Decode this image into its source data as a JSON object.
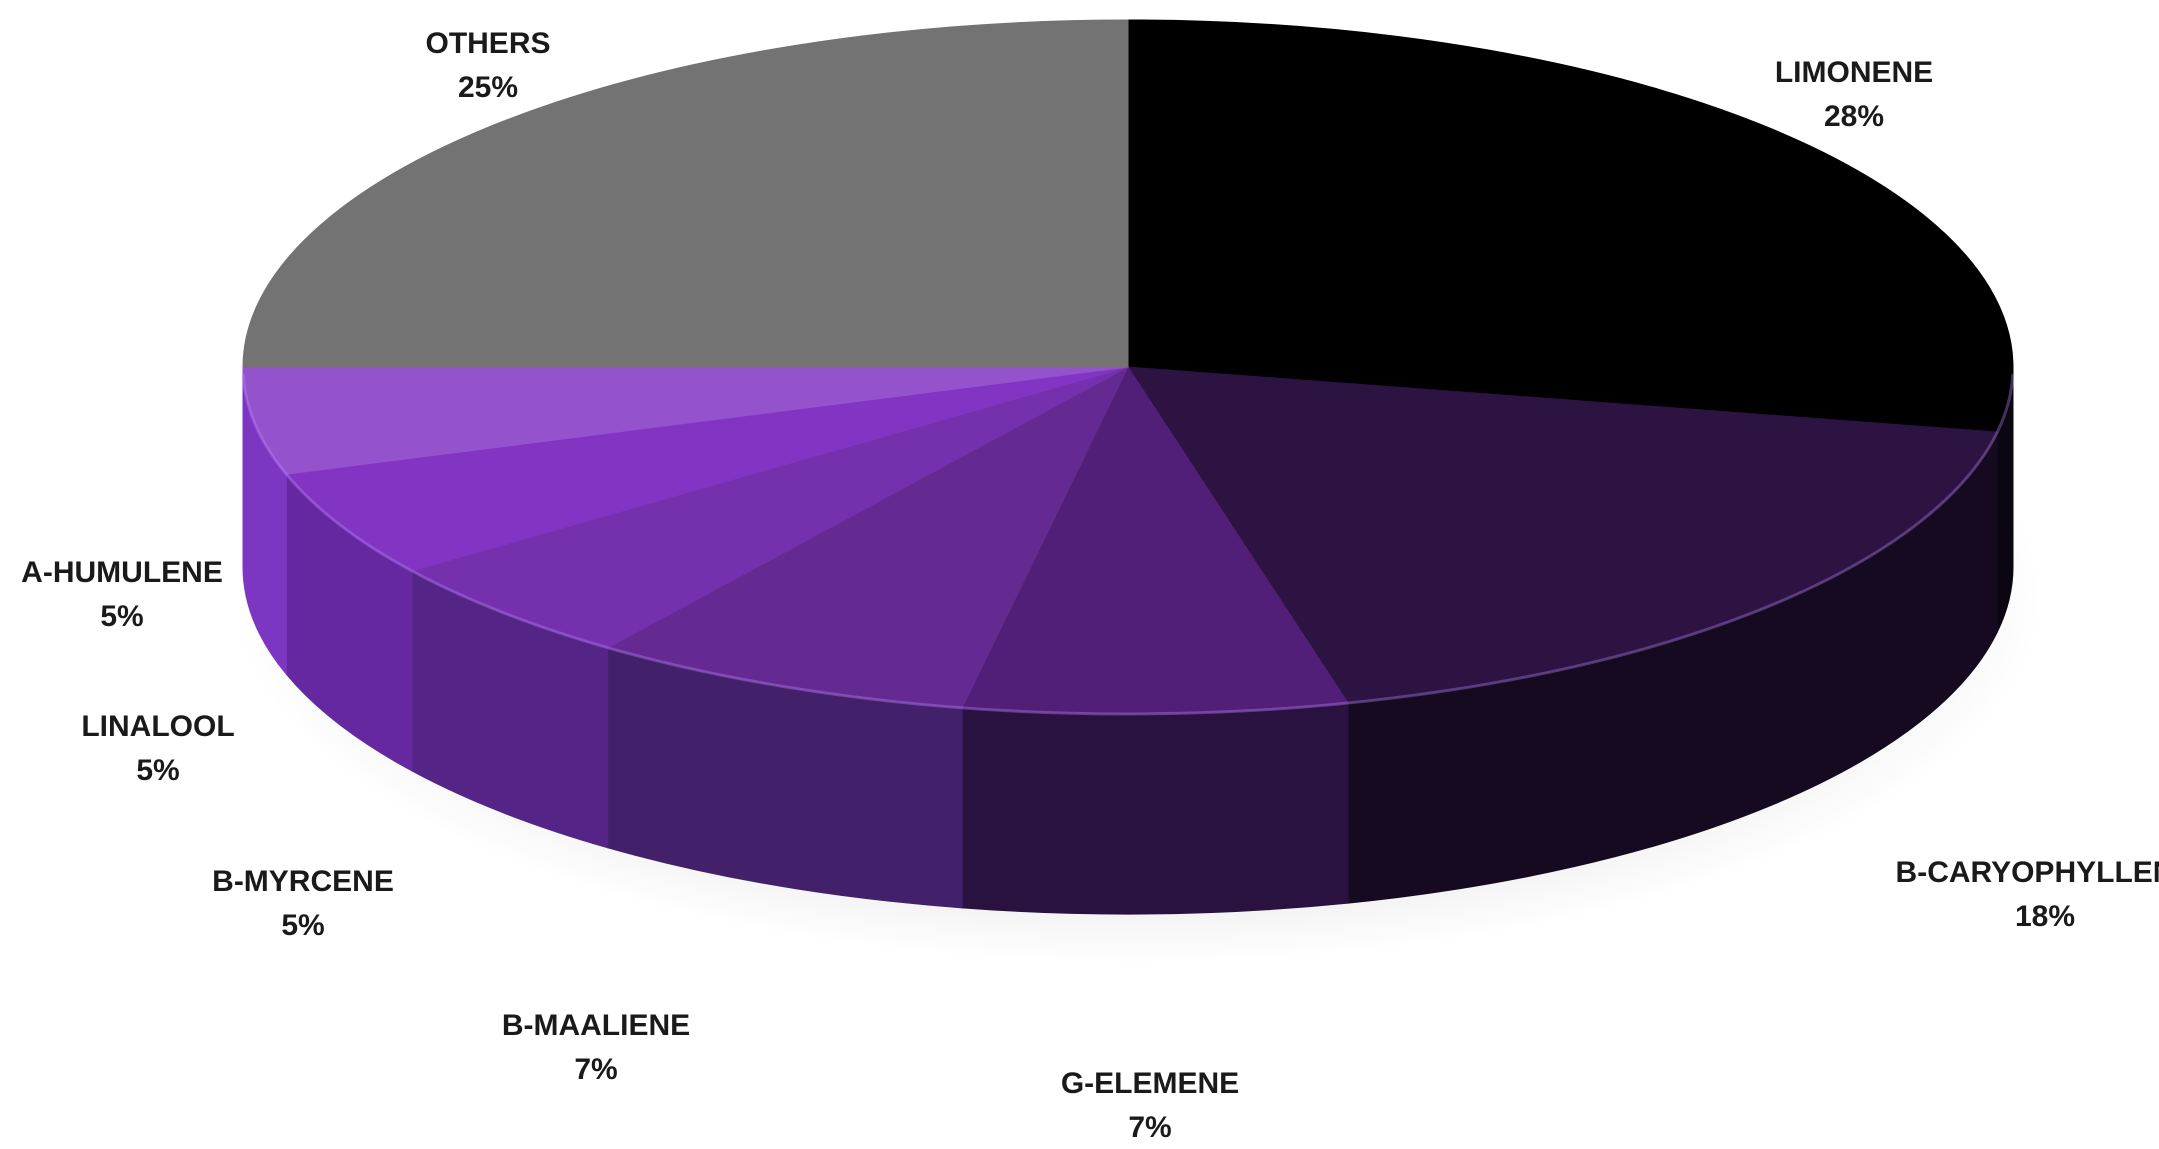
{
  "chart_data": {
    "type": "pie",
    "style": "3d",
    "title": "",
    "start": "top, clockwise",
    "slices": [
      {
        "label": "LIMONENE",
        "value": 28,
        "value_text": "28%",
        "color": "#000000",
        "side_color": "#0c0612"
      },
      {
        "label": "B-CARYOPHYLLENE",
        "value": 18,
        "value_text": "18%",
        "color": "#2c1342",
        "side_color": "#150a20"
      },
      {
        "label": "G-ELEMENE",
        "value": 7,
        "value_text": "7%",
        "color": "#521f78",
        "side_color": "#2a1240"
      },
      {
        "label": "B-MAALIENE",
        "value": 7,
        "value_text": "7%",
        "color": "#652a92",
        "side_color": "#43206a"
      },
      {
        "label": "B-MYRCENE",
        "value": 5,
        "value_text": "5%",
        "color": "#7430ad",
        "side_color": "#542486"
      },
      {
        "label": "LINALOOL",
        "value": 5,
        "value_text": "5%",
        "color": "#8234c3",
        "side_color": "#6528a0"
      },
      {
        "label": "A-HUMULENE",
        "value": 5,
        "value_text": "5%",
        "color": "#9452cc",
        "side_color": "#7c36c2"
      },
      {
        "label": "OTHERS",
        "value": 25,
        "value_text": "25%",
        "color": "#737373",
        "side_color": "#555555"
      }
    ]
  }
}
